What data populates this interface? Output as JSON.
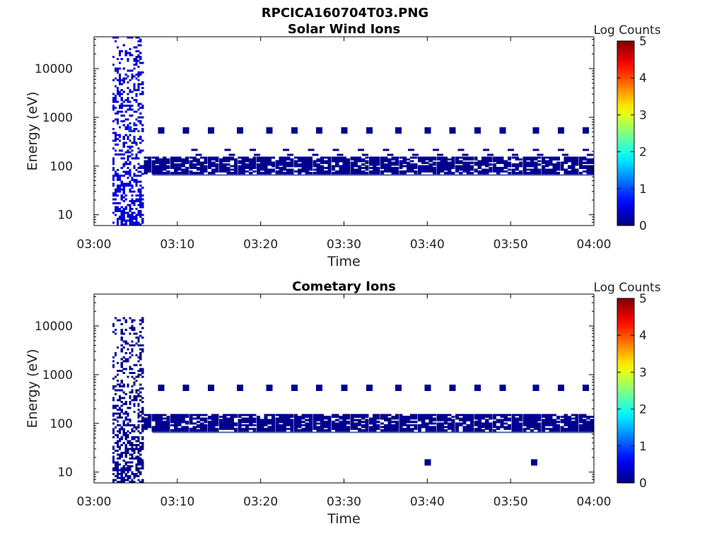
{
  "figure_title": "RPCICA160704T03.PNG",
  "colors": {
    "data_fill": "#00008f",
    "data_hot": "#0b3bd6",
    "axis": "#000000",
    "background": "#ffffff"
  },
  "chart_data": [
    {
      "type": "heatmap",
      "title": "Solar Wind Ions",
      "xlabel": "Time",
      "ylabel": "Energy (eV)",
      "x_ticks": [
        "03:00",
        "03:10",
        "03:20",
        "03:30",
        "03:40",
        "03:50",
        "04:00"
      ],
      "x_range_minutes": [
        0,
        60
      ],
      "y_ticks": [
        {
          "value": 10,
          "label": "10"
        },
        {
          "value": 100,
          "label": "100"
        },
        {
          "value": 1000,
          "label": "1000"
        },
        {
          "value": 10000,
          "label": "10000"
        }
      ],
      "y_scale": "log",
      "y_range": [
        6,
        45000
      ],
      "colorbar": {
        "label": "Log Counts",
        "ticks": [
          "0",
          "1",
          "2",
          "3",
          "4",
          "5"
        ],
        "range": [
          0,
          5
        ],
        "colormap": "jet"
      },
      "grid": false,
      "features": [
        {
          "name": "burst",
          "t_start_min": 2.2,
          "t_end_min": 5.8,
          "e_min": 6,
          "e_max": 42000,
          "log_counts": 0.4
        },
        {
          "name": "main_band",
          "t_start_min": 6.0,
          "t_end_min": 60,
          "e_min": 70,
          "e_max": 150,
          "log_counts": 0.3
        },
        {
          "name": "upper_band_points",
          "e": 520,
          "times_min": [
            8,
            11,
            14,
            17.5,
            21,
            24,
            27,
            30,
            33,
            36.5,
            40,
            43,
            46,
            49,
            53,
            56,
            59
          ],
          "log_counts": 0.3
        },
        {
          "name": "secondary_band_points",
          "e": 210,
          "times_min": [
            12,
            16,
            19,
            23,
            26,
            29,
            32,
            35,
            38,
            41,
            44,
            47,
            50,
            53,
            56,
            59
          ],
          "log_counts": 0.2
        }
      ]
    },
    {
      "type": "heatmap",
      "title": "Cometary Ions",
      "xlabel": "Time",
      "ylabel": "Energy (eV)",
      "x_ticks": [
        "03:00",
        "03:10",
        "03:20",
        "03:30",
        "03:40",
        "03:50",
        "04:00"
      ],
      "x_range_minutes": [
        0,
        60
      ],
      "y_ticks": [
        {
          "value": 10,
          "label": "10"
        },
        {
          "value": 100,
          "label": "100"
        },
        {
          "value": 1000,
          "label": "1000"
        },
        {
          "value": 10000,
          "label": "10000"
        }
      ],
      "y_scale": "log",
      "y_range": [
        6,
        45000
      ],
      "colorbar": {
        "label": "Log Counts",
        "ticks": [
          "0",
          "1",
          "2",
          "3",
          "4",
          "5"
        ],
        "range": [
          0,
          5
        ],
        "colormap": "jet"
      },
      "grid": false,
      "features": [
        {
          "name": "burst",
          "t_start_min": 2.2,
          "t_end_min": 5.8,
          "e_min": 6,
          "e_max": 15000,
          "log_counts": 0.3
        },
        {
          "name": "main_band",
          "t_start_min": 6.0,
          "t_end_min": 60,
          "e_min": 70,
          "e_max": 150,
          "log_counts": 0.3
        },
        {
          "name": "upper_band_points",
          "e": 520,
          "times_min": [
            8,
            11,
            14,
            17.5,
            21,
            24,
            27,
            30,
            33,
            36.5,
            40,
            43,
            46,
            49,
            53,
            56,
            59
          ],
          "log_counts": 0.3
        },
        {
          "name": "isolated_points",
          "e": 16,
          "times_min": [
            5.5,
            40,
            52.8
          ],
          "log_counts": 0.3
        }
      ]
    }
  ]
}
